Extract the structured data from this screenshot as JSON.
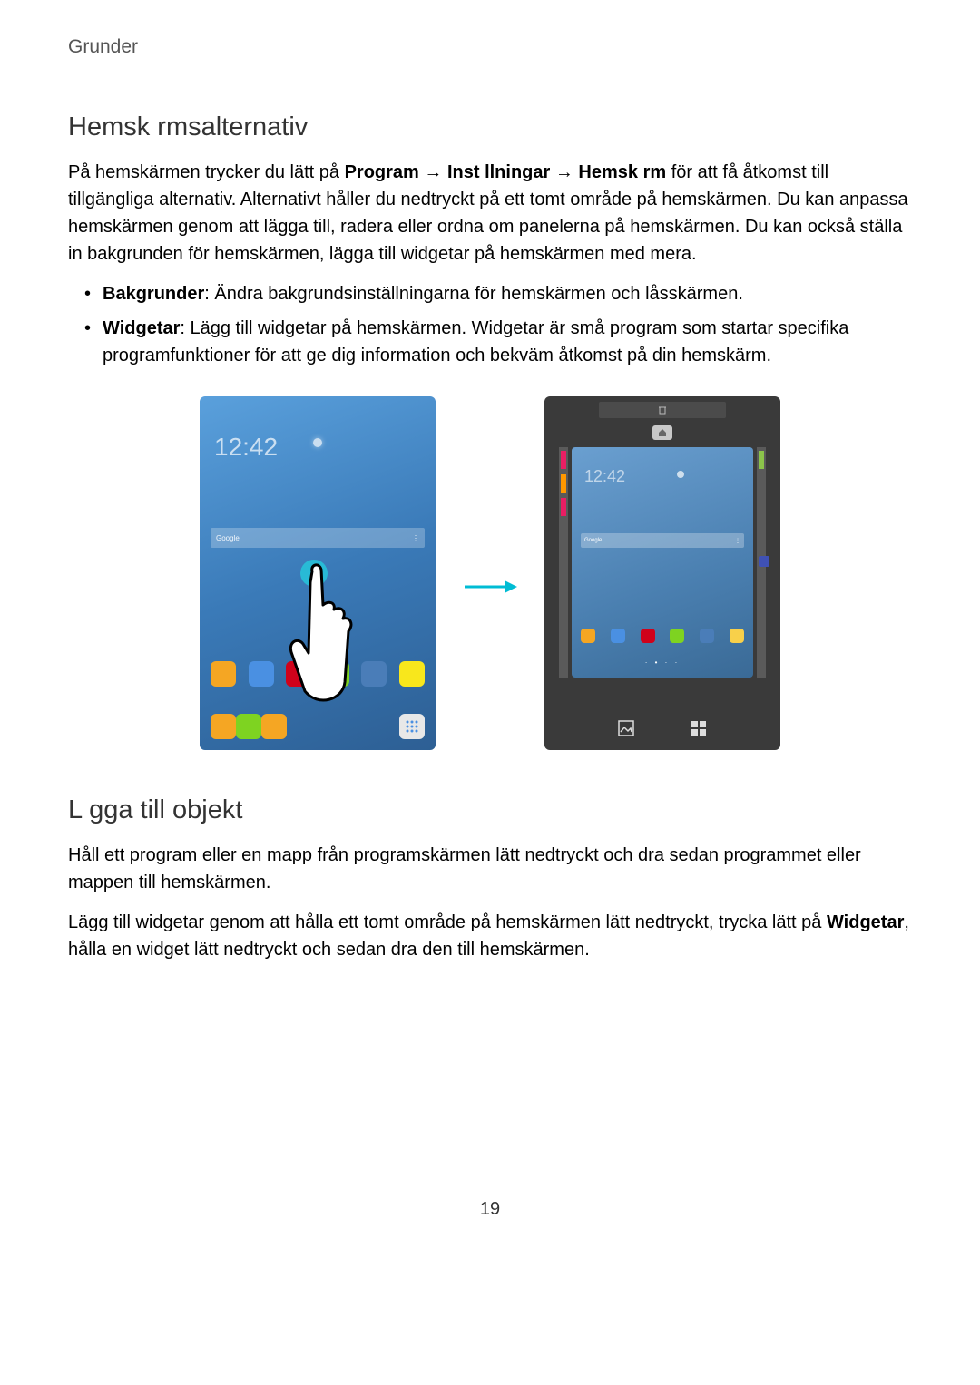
{
  "header": "Grunder",
  "section1": {
    "title": "Hemsk rmsalternativ",
    "para_parts": {
      "p1a": "På hemskärmen trycker du lätt på ",
      "p1b": "Program",
      "p1c": " → ",
      "p1d": "Inst llningar ",
      "p1e": " → ",
      "p1f": "Hemsk rm",
      "p1g": " för att få åtkomst till tillgängliga alternativ. Alternativt håller du nedtryckt på ett tomt område på hemskärmen. Du kan anpassa hemskärmen genom att lägga till, radera eller ordna om panelerna på hemskärmen. Du kan också ställa in bakgrunden för hemskärmen, lägga till widgetar på hemskärmen med mera."
    },
    "bullets": [
      {
        "label": "Bakgrunder",
        "text": ": Ändra bakgrundsinställningarna för hemskärmen och låsskärmen."
      },
      {
        "label": "Widgetar",
        "text": ": Lägg till widgetar på hemskärmen. Widgetar är små program som startar specifika programfunktioner för att ge dig information och bekväm åtkomst på din hemskärm."
      }
    ]
  },
  "section2": {
    "title": "L gga till objekt",
    "para1": "Håll ett program eller en mapp från programskärmen lätt nedtryckt och dra sedan programmet eller mappen till hemskärmen.",
    "para2_parts": {
      "a": "Lägg till widgetar genom att hålla ett tomt område på hemskärmen lätt nedtryckt, trycka lätt på ",
      "b": "Widgetar",
      "c": ", hålla en widget lätt nedtryckt och sedan dra den till hemskärmen."
    }
  },
  "figure": {
    "left": {
      "clock": "12:42",
      "search_left": "Google",
      "search_right": "⋮",
      "dock_colors": [
        "#f5a623",
        "#4a90e2",
        "#d0021b",
        "#7ed321",
        "#4a7db8",
        "#f8e71c"
      ],
      "bottom_colors": [
        "#f5a623",
        "#7ed321",
        "#f5a623"
      ],
      "apps_bg": "#e8e8e8"
    },
    "right": {
      "panel_clock": "12:42",
      "side_tags_left": [
        "#e91e63",
        "#ff9800",
        "#e91e63"
      ],
      "side_tags_right": [
        "#8bc34a"
      ],
      "right_widget_badge": "#3f51b5",
      "dock_colors": [
        "#f5a623",
        "#4a90e2",
        "#d0021b",
        "#7ed321",
        "#4a7db8",
        "#f8d04a"
      ],
      "bottom_icons": [
        "wallpaper",
        "widgets"
      ]
    },
    "arrow_color": "#00bcd4"
  },
  "page_number": "19"
}
